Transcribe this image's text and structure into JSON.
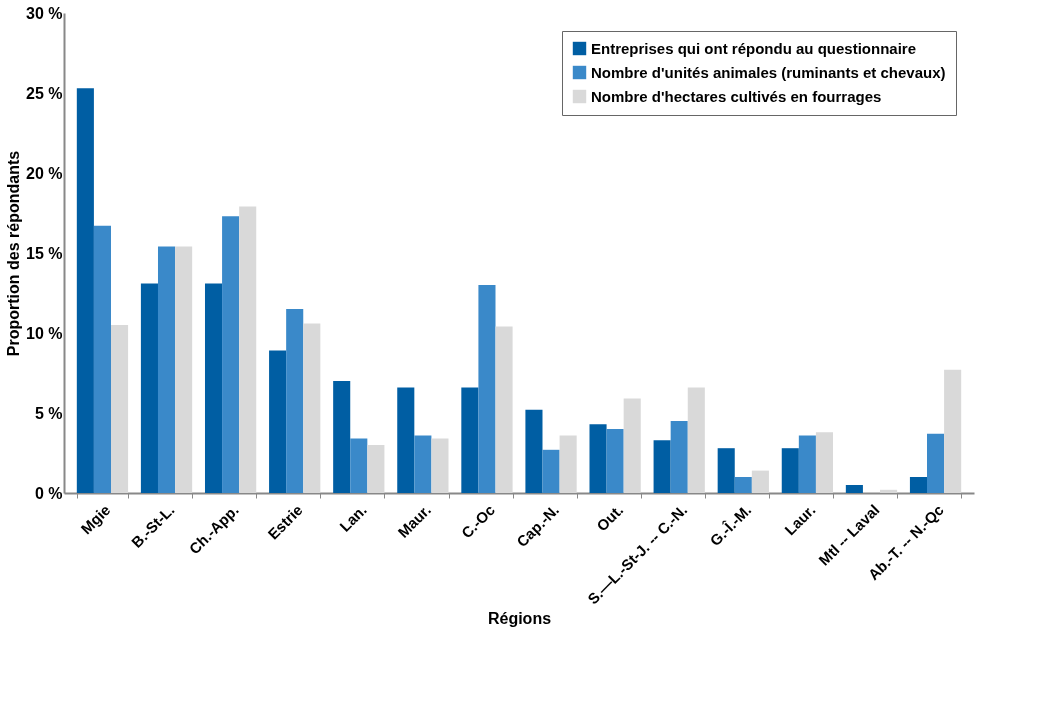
{
  "chart_data": {
    "type": "bar",
    "xlabel": "Régions",
    "ylabel": "Proportion des répondants",
    "categories": [
      "Mgie",
      "B.-St-L.",
      "Ch.-App.",
      "Estrie",
      "Lan.",
      "Maur.",
      "C.-Oc",
      "Cap.-N.",
      "Out.",
      "S.—L.-St-J. -- C.-N.",
      "G.-Î.-M.",
      "Laur.",
      "Mtl -- Laval",
      "Ab.-T. -- N.-Qc"
    ],
    "series": [
      {
        "name": "Entreprises qui ont répondu au questionnaire",
        "color": "#005ea3",
        "values": [
          25.3,
          13.1,
          13.1,
          8.9,
          7.0,
          6.6,
          6.6,
          5.2,
          4.3,
          3.3,
          2.8,
          2.8,
          0.5,
          1.0
        ]
      },
      {
        "name": "Nombre d'unités animales (ruminants et chevaux)",
        "color": "#3a89c9",
        "values": [
          16.7,
          15.4,
          17.3,
          11.5,
          3.4,
          3.6,
          13.0,
          2.7,
          4.0,
          4.5,
          1.0,
          3.6,
          null,
          3.7
        ]
      },
      {
        "name": "Nombre d'hectares cultivés en fourrages",
        "color": "#d9d9d9",
        "values": [
          10.5,
          15.4,
          17.9,
          10.6,
          3.0,
          3.4,
          10.4,
          3.6,
          5.9,
          6.6,
          1.4,
          3.8,
          0.2,
          7.7
        ]
      }
    ],
    "ylim": [
      0,
      30
    ],
    "yticks": [
      {
        "value": 0,
        "label": "0 %"
      },
      {
        "value": 5,
        "label": "5 %"
      },
      {
        "value": 10,
        "label": "10 %"
      },
      {
        "value": 15,
        "label": "15 %"
      },
      {
        "value": 20,
        "label": "20 %"
      },
      {
        "value": 25,
        "label": "25 %"
      },
      {
        "value": 30,
        "label": "30 %"
      }
    ],
    "grid": false,
    "legend": "top right"
  }
}
